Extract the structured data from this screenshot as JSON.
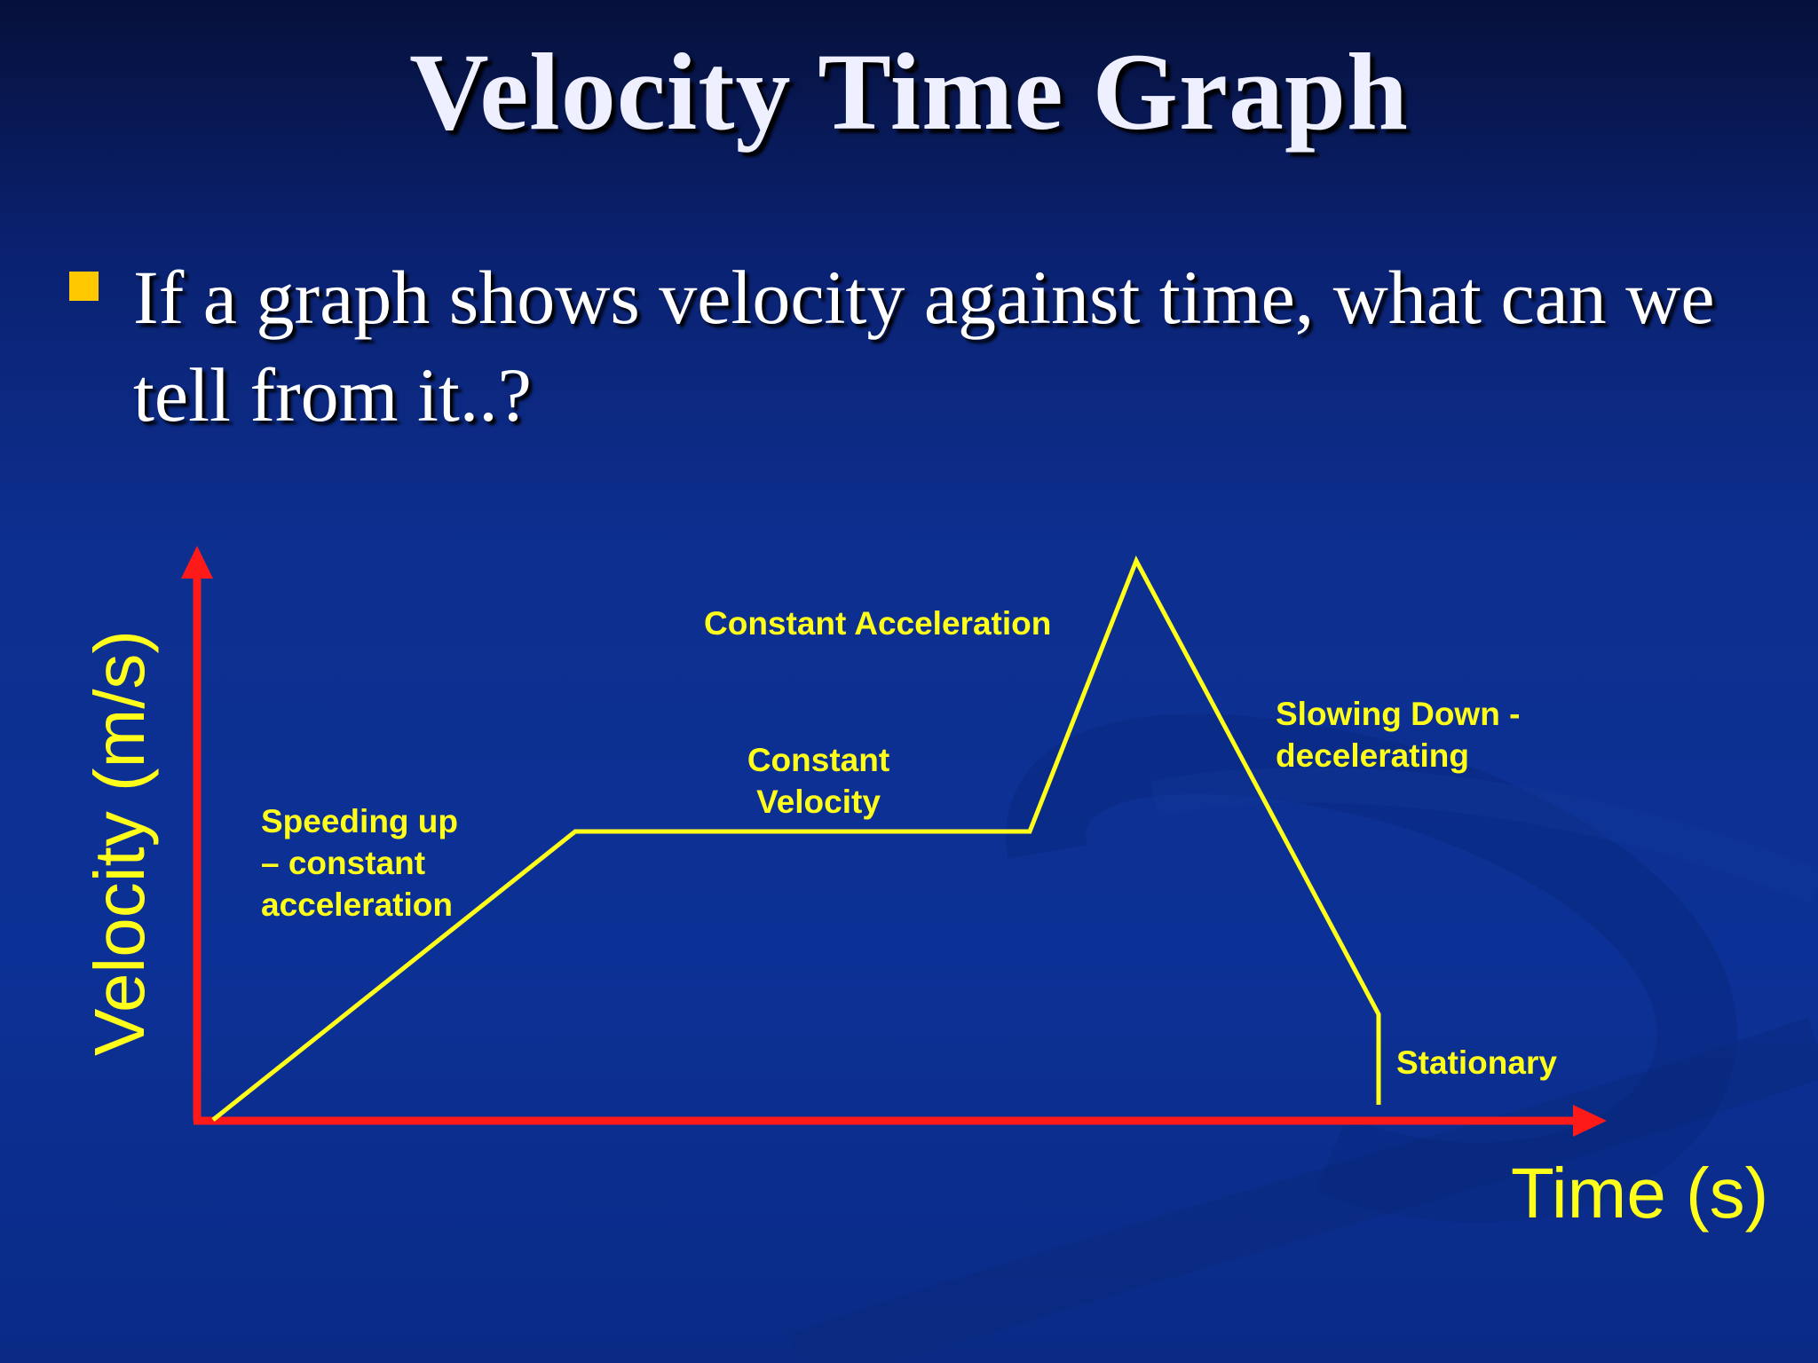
{
  "slide": {
    "title": "Velocity Time Graph",
    "bullet": "If a graph shows velocity against time, what can we tell from it..?",
    "bullet_color": "#ffc800"
  },
  "graph": {
    "y_axis_label": "Velocity (m/s)",
    "x_axis_label": "Time (s)",
    "axis_color": "#ff1a1a",
    "line_color": "#ffff1a",
    "segments": [
      {
        "label_lines": [
          "Speeding up",
          "– constant",
          "acceleration"
        ]
      },
      {
        "label_lines": [
          "Constant",
          "Velocity"
        ]
      },
      {
        "label_lines": [
          "Constant Acceleration"
        ]
      },
      {
        "label_lines": [
          "Slowing Down -",
          "decelerating"
        ]
      },
      {
        "label_lines": [
          "Stationary"
        ]
      }
    ]
  }
}
